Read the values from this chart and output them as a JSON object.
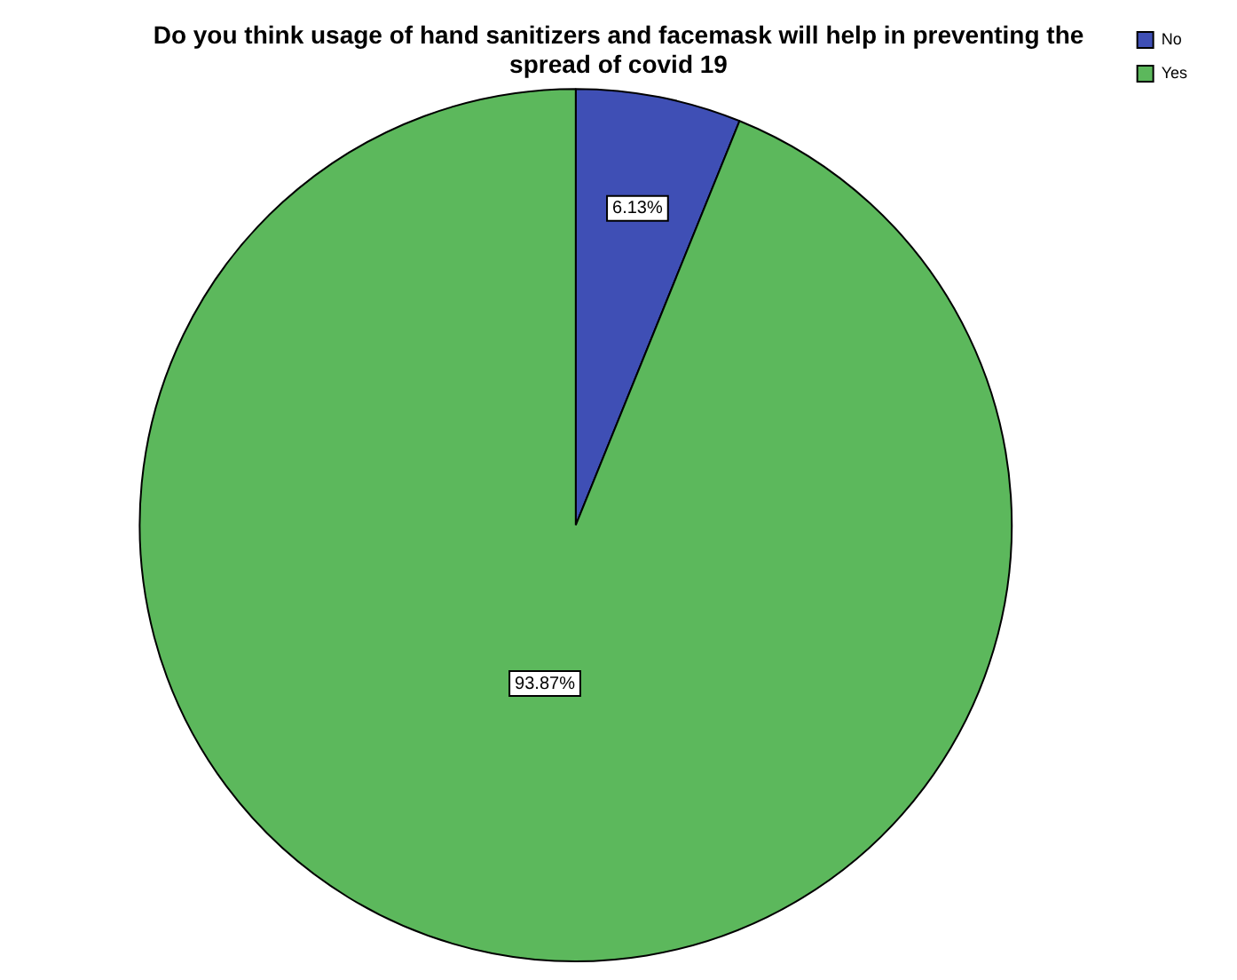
{
  "chart_data": {
    "type": "pie",
    "title": "Do you think usage of hand sanitizers and facemask will help in preventing the spread of covid 19",
    "categories": [
      "No",
      "Yes"
    ],
    "values": [
      6.13,
      93.87
    ],
    "value_labels": [
      "6.13%",
      "93.87%"
    ],
    "colors": [
      "#3f4fb5",
      "#5cb85c"
    ],
    "legend": "top right"
  }
}
